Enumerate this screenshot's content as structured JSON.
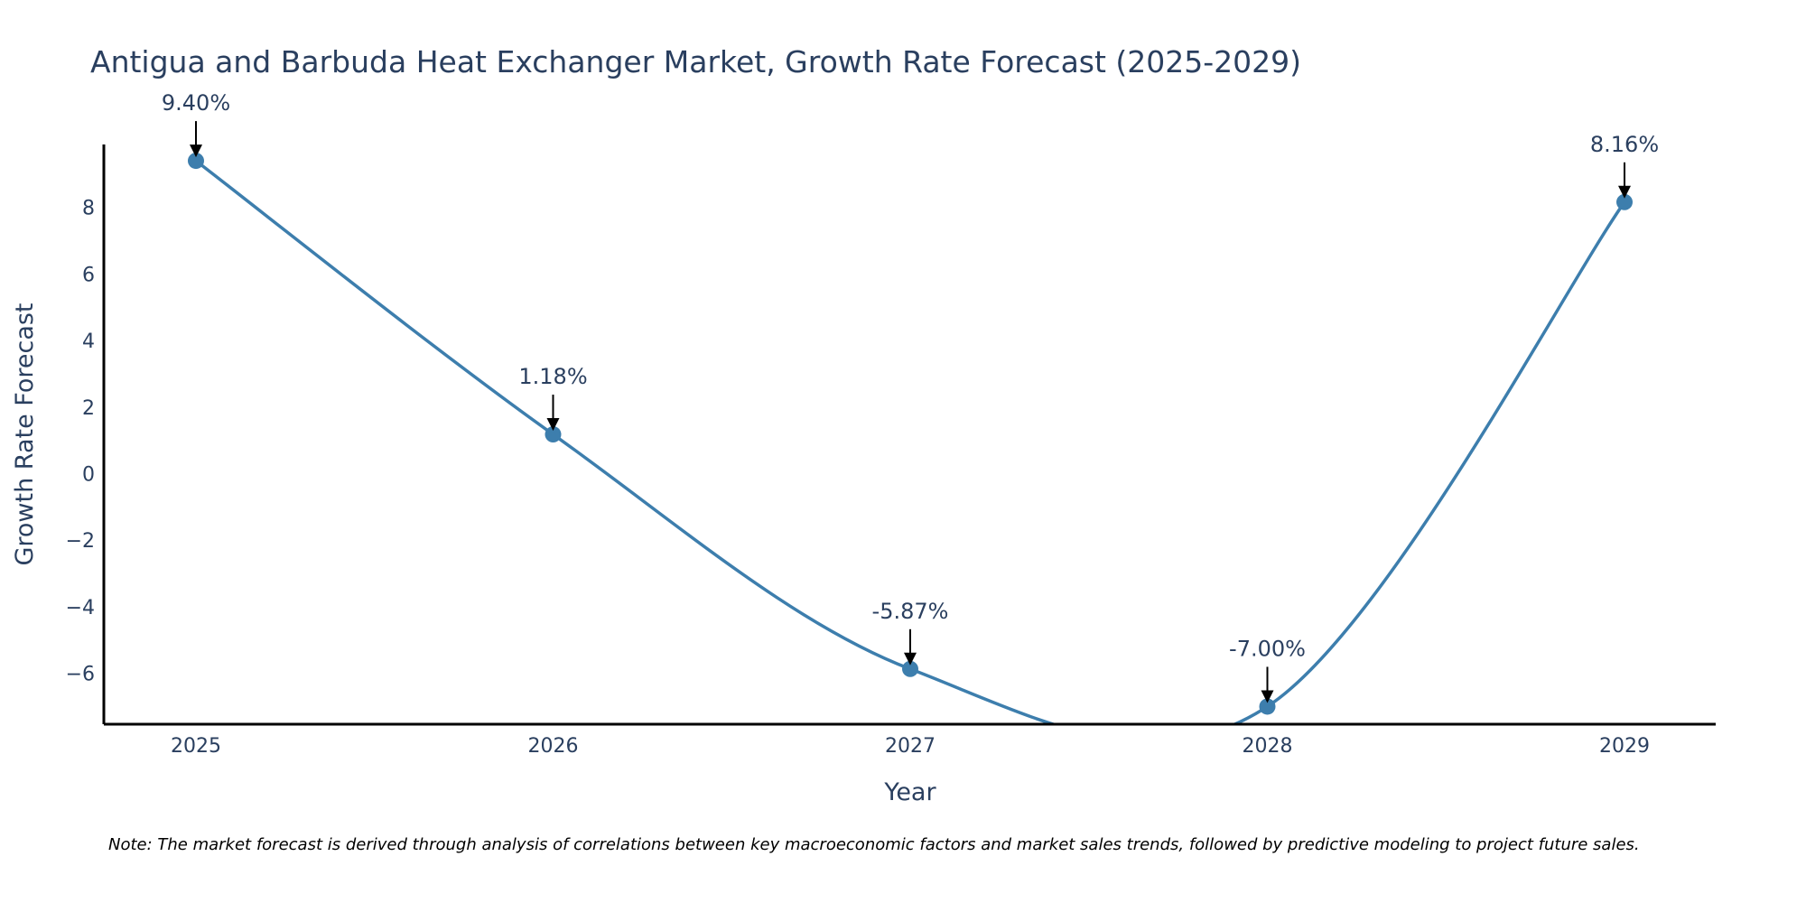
{
  "chart_data": {
    "type": "line",
    "title": "Antigua and Barbuda Heat Exchanger Market, Growth Rate Forecast (2025-2029)",
    "xlabel": "Year",
    "ylabel": "Growth Rate Forecast",
    "categories": [
      "2025",
      "2026",
      "2027",
      "2028",
      "2029"
    ],
    "series": [
      {
        "name": "Growth Rate Forecast",
        "values": [
          9.4,
          1.18,
          -5.87,
          -7.0,
          8.16
        ],
        "labels": [
          "9.40%",
          "1.18%",
          "-5.87%",
          "-7.00%",
          "8.16%"
        ]
      }
    ],
    "ylim": [
      -7.6,
      9.8
    ],
    "yticks": [
      -6,
      -4,
      -2,
      0,
      2,
      4,
      6,
      8
    ],
    "ytick_labels": [
      "−6",
      "−4",
      "−2",
      "0",
      "2",
      "4",
      "6",
      "8"
    ],
    "grid": false,
    "line_shape": "spline",
    "colors": {
      "line": "#3d7ead",
      "marker": "#3d7ead",
      "arrow": "#000000",
      "axis": "#000000"
    }
  },
  "note": "Note: The market forecast is derived through analysis of correlations between key macroeconomic factors and market sales trends, followed by predictive modeling to project future sales."
}
